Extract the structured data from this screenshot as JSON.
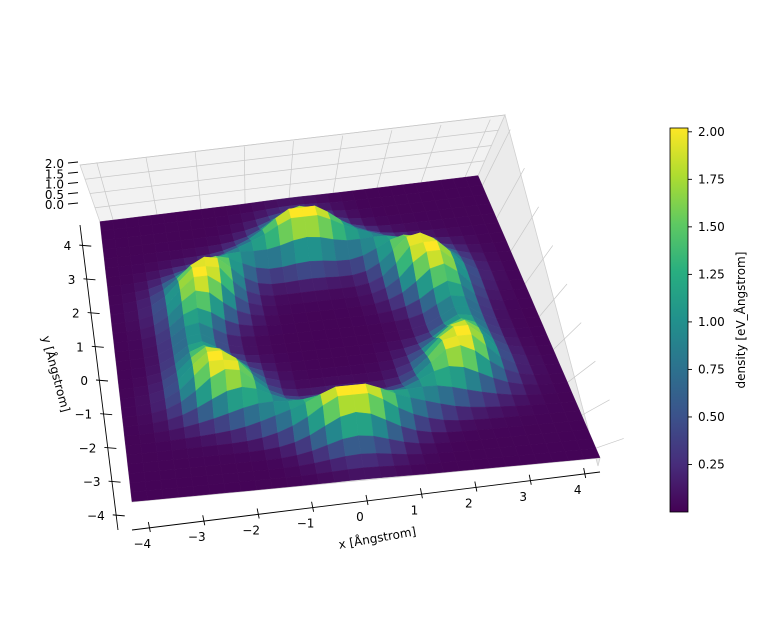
{
  "chart_data": {
    "type": "surface3d",
    "title": "",
    "xlabel": "x [Ångstrom]",
    "ylabel": "y [Ångstrom]",
    "zlabel": "",
    "xlim": [
      -4.3,
      4.3
    ],
    "ylim": [
      -4.3,
      4.3
    ],
    "zlim": [
      0,
      2.0
    ],
    "x_ticks": [
      -4,
      -3,
      -2,
      -1,
      0,
      1,
      2,
      3,
      4
    ],
    "x_tick_labels": [
      "−4",
      "−3",
      "−2",
      "−1",
      "0",
      "1",
      "2",
      "3",
      "4"
    ],
    "y_ticks": [
      -4,
      -3,
      -2,
      -1,
      0,
      1,
      2,
      3,
      4
    ],
    "y_tick_labels": [
      "−4",
      "−3",
      "−2",
      "−1",
      "0",
      "1",
      "2",
      "3",
      "4"
    ],
    "z_ticks": [
      0.0,
      0.5,
      1.0,
      1.5,
      2.0
    ],
    "z_tick_labels": [
      "0.0",
      "0.5",
      "1.0",
      "1.5",
      "2.0"
    ],
    "grid": true,
    "colormap": "viridis",
    "colorbar": {
      "label": "density [eV_Ångstrom]",
      "ticks": [
        0.25,
        0.5,
        0.75,
        1.0,
        1.25,
        1.5,
        1.75,
        2.0
      ],
      "tick_labels": [
        "0.25",
        "0.50",
        "0.75",
        "1.00",
        "1.25",
        "1.50",
        "1.75",
        "2.00"
      ],
      "range": [
        0.0,
        2.02
      ],
      "placement": "right"
    },
    "surface": {
      "description_of_peaks": "six-fold ring of density maxima (~2.0) around the origin, baseline ~0.02",
      "peaks": [
        {
          "x": 0.0,
          "y": 2.8,
          "value": 2.0
        },
        {
          "x": 2.4,
          "y": 1.4,
          "value": 2.0
        },
        {
          "x": 2.4,
          "y": -1.4,
          "value": 2.0
        },
        {
          "x": 0.0,
          "y": -2.8,
          "value": 2.0
        },
        {
          "x": -2.4,
          "y": -1.4,
          "value": 2.0
        },
        {
          "x": -2.4,
          "y": 1.4,
          "value": 2.0
        }
      ],
      "baseline": 0.02
    }
  }
}
